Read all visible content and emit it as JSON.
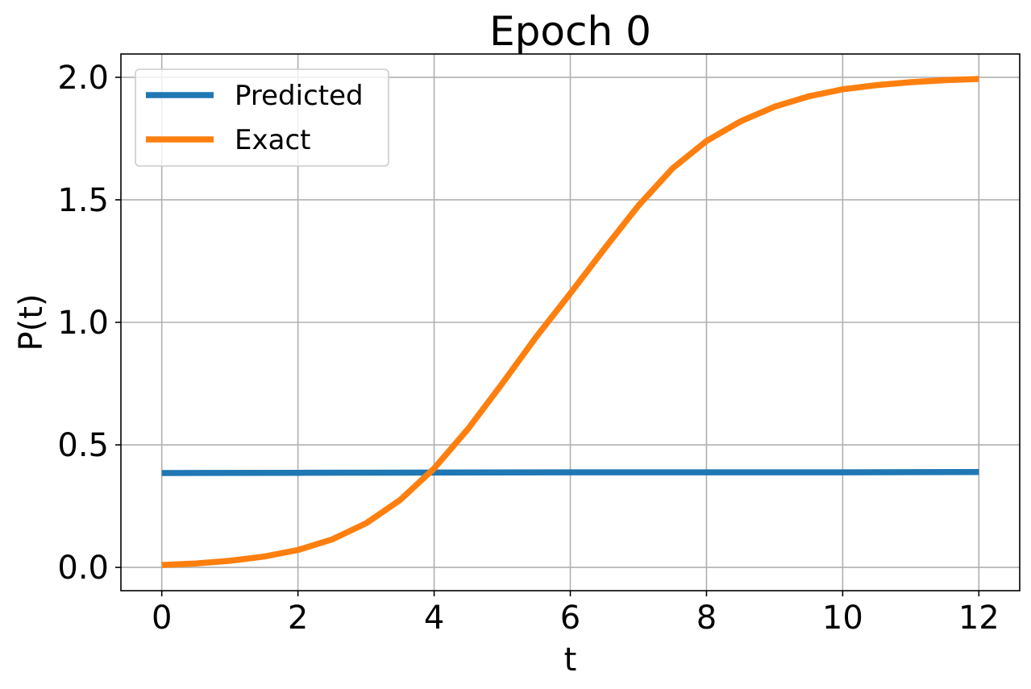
{
  "chart_data": {
    "type": "line",
    "title": "Epoch 0",
    "xlabel": "t",
    "ylabel": "P(t)",
    "xlim": [
      -0.6,
      12.6
    ],
    "ylim": [
      -0.095,
      2.095
    ],
    "xticks": [
      0,
      2,
      4,
      6,
      8,
      10,
      12
    ],
    "xtick_labels": [
      "0",
      "2",
      "4",
      "6",
      "8",
      "10",
      "12"
    ],
    "yticks": [
      0.0,
      0.5,
      1.0,
      1.5,
      2.0
    ],
    "ytick_labels": [
      "0.0",
      "0.5",
      "1.0",
      "1.5",
      "2.0"
    ],
    "grid": true,
    "legend": "top-left",
    "series": [
      {
        "name": "Predicted",
        "color": "#1f77b4",
        "x": [
          0,
          2,
          4,
          6,
          8,
          10,
          12
        ],
        "y": [
          0.385,
          0.386,
          0.387,
          0.388,
          0.388,
          0.388,
          0.389
        ]
      },
      {
        "name": "Exact",
        "color": "#ff7f0e",
        "x": [
          0,
          0.5,
          1,
          1.5,
          2,
          2.5,
          3,
          3.5,
          4,
          4.5,
          5,
          5.5,
          6,
          6.5,
          7,
          7.5,
          8,
          8.5,
          9,
          9.5,
          10,
          10.5,
          11,
          11.5,
          12
        ],
        "y": [
          0.01,
          0.016,
          0.027,
          0.044,
          0.071,
          0.114,
          0.18,
          0.275,
          0.404,
          0.566,
          0.75,
          0.941,
          1.118,
          1.3,
          1.476,
          1.628,
          1.74,
          1.82,
          1.88,
          1.922,
          1.951,
          1.968,
          1.98,
          1.988,
          1.993
        ]
      }
    ]
  }
}
